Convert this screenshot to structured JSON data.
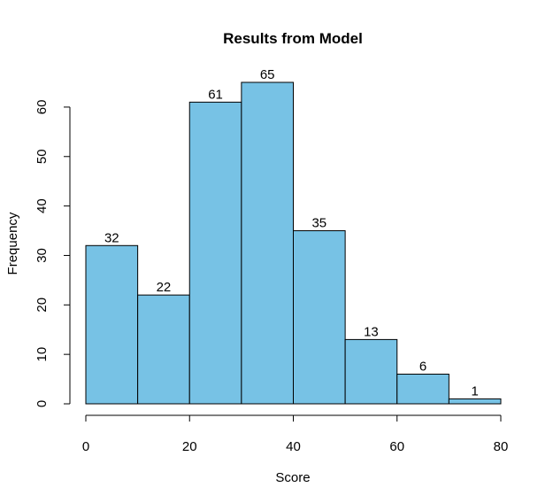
{
  "chart_data": {
    "type": "bar",
    "title": "Results from Model",
    "xlabel": "Score",
    "ylabel": "Frequency",
    "bins": [
      [
        0,
        10
      ],
      [
        10,
        20
      ],
      [
        20,
        30
      ],
      [
        30,
        40
      ],
      [
        40,
        50
      ],
      [
        50,
        60
      ],
      [
        60,
        70
      ],
      [
        70,
        80
      ]
    ],
    "values": [
      32,
      22,
      61,
      65,
      35,
      13,
      6,
      1
    ],
    "data_labels": [
      "32",
      "22",
      "61",
      "65",
      "35",
      "13",
      "6",
      "1"
    ],
    "xlim": [
      0,
      80
    ],
    "ylim": [
      0,
      65
    ],
    "x_ticks": [
      0,
      20,
      40,
      60,
      80
    ],
    "y_ticks": [
      0,
      10,
      20,
      30,
      40,
      50,
      60
    ],
    "grid": false,
    "bar_color": "#77c2e5",
    "bar_edge_color": "#000000"
  }
}
